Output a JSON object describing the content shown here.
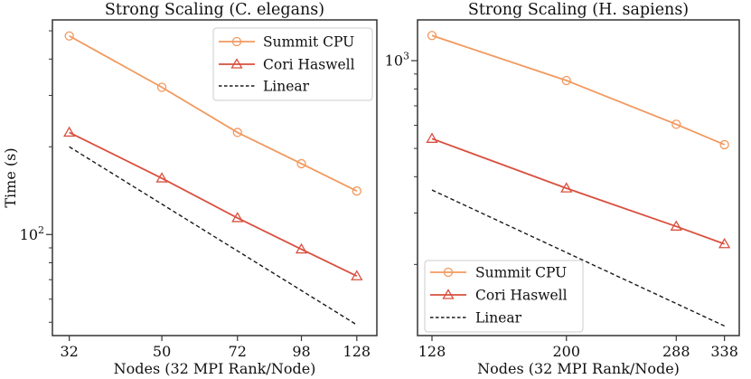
{
  "figure": {
    "background": "#ffffff",
    "axis_color": "#333333",
    "text_color": "#111111"
  },
  "chart_data": [
    {
      "type": "line",
      "title": "Strong Scaling (C. elegans)",
      "xlabel": "Nodes (32 MPI Rank/Node)",
      "ylabel": "Time (s)",
      "xscale": "log",
      "yscale": "log",
      "grid": false,
      "x": [
        32,
        50,
        72,
        98,
        128
      ],
      "xlim": [
        29.5,
        141
      ],
      "ylim": [
        45,
        545
      ],
      "y_tick_exponents": [
        2
      ],
      "legend_position": "upper right",
      "series": [
        {
          "name": "Summit CPU",
          "color": "#F2995E",
          "marker": "circle",
          "line_style": "solid",
          "values": [
            480,
            320,
            224,
            175,
            141
          ]
        },
        {
          "name": "Cori Haswell",
          "color": "#D9503F",
          "marker": "triangle",
          "line_style": "solid",
          "values": [
            224,
            156,
            114,
            89,
            72
          ]
        },
        {
          "name": "Linear",
          "color": "#1a1a1a",
          "marker": "none",
          "line_style": "dashed",
          "x": [
            32,
            128
          ],
          "values": [
            200,
            49
          ]
        }
      ]
    },
    {
      "type": "line",
      "title": "Strong Scaling (H. sapiens)",
      "xlabel": "Nodes (32 MPI Rank/Node)",
      "ylabel": "",
      "xscale": "log",
      "yscale": "log",
      "grid": false,
      "x": [
        128,
        200,
        288,
        338
      ],
      "xlim": [
        122,
        355
      ],
      "ylim": [
        114,
        1380
      ],
      "y_tick_exponents": [
        3
      ],
      "legend_position": "lower left",
      "series": [
        {
          "name": "Summit CPU",
          "color": "#F2995E",
          "marker": "circle",
          "line_style": "solid",
          "values": [
            1220,
            855,
            605,
            515
          ]
        },
        {
          "name": "Cori Haswell",
          "color": "#D9503F",
          "marker": "triangle",
          "line_style": "solid",
          "values": [
            540,
            365,
            270,
            235
          ]
        },
        {
          "name": "Linear",
          "color": "#1a1a1a",
          "marker": "none",
          "line_style": "dashed",
          "x": [
            128,
            338
          ],
          "values": [
            360,
            123
          ]
        }
      ]
    }
  ]
}
